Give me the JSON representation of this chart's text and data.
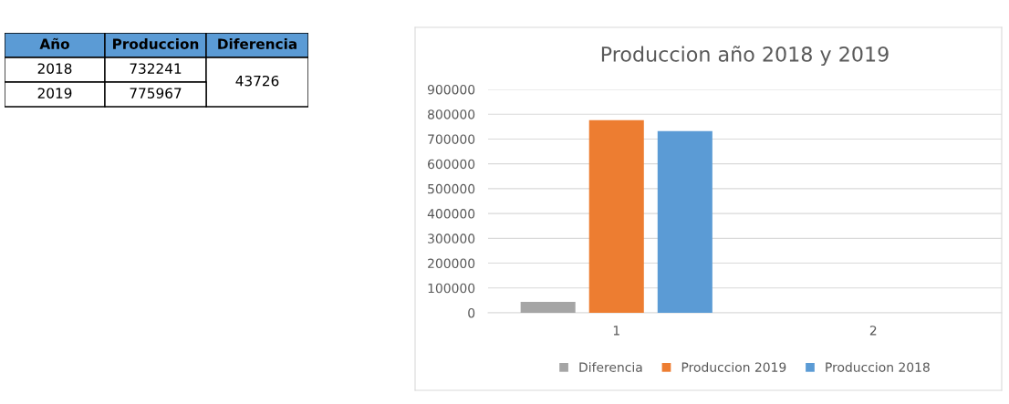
{
  "chart_data": [
    {
      "type": "other",
      "categories": [
        "Año",
        "Produccion",
        "Diferencia"
      ],
      "color": "#5b9bd5",
      "cell_labels": [
        [
          "2018",
          "732241",
          "43726"
        ],
        [
          "2019",
          "775967",
          null
        ]
      ]
    },
    {
      "type": "bar",
      "title": "Produccion año 2018 y 2019",
      "categories": [
        "1",
        "2"
      ],
      "series": [
        {
          "name": "Diferencia",
          "color": "#a5a5a5",
          "values": [
            44000,
            null
          ]
        },
        {
          "name": "Produccion 2019",
          "color": "#ed7d31",
          "values": [
            776000,
            null
          ]
        },
        {
          "name": "Produccion 2018",
          "color": "#5b9bd5",
          "values": [
            732000,
            null
          ]
        }
      ],
      "ylim": [
        0,
        900000
      ],
      "yticks": [
        0,
        100000,
        200000,
        300000,
        400000,
        500000,
        600000,
        700000,
        800000,
        900000
      ],
      "grid": "y",
      "legend": "bottom"
    }
  ]
}
